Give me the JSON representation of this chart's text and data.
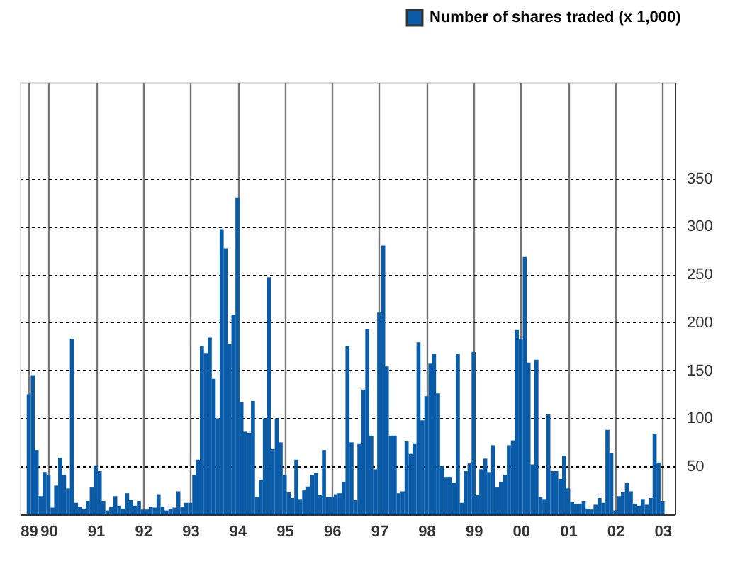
{
  "chart_data": {
    "type": "bar",
    "x": [
      "1989-08",
      "1989-09",
      "1989-10",
      "1989-11",
      "1989-12",
      "1990-01",
      "1990-02",
      "1990-03",
      "1990-04",
      "1990-05",
      "1990-06",
      "1990-07",
      "1990-08",
      "1990-09",
      "1990-10",
      "1990-11",
      "1990-12",
      "1991-01",
      "1991-02",
      "1991-03",
      "1991-04",
      "1991-05",
      "1991-06",
      "1991-07",
      "1991-08",
      "1991-09",
      "1991-10",
      "1991-11",
      "1991-12",
      "1992-01",
      "1992-02",
      "1992-03",
      "1992-04",
      "1992-05",
      "1992-06",
      "1992-07",
      "1992-08",
      "1992-09",
      "1992-10",
      "1992-11",
      "1992-12",
      "1993-01",
      "1993-02",
      "1993-03",
      "1993-04",
      "1993-05",
      "1993-06",
      "1993-07",
      "1993-08",
      "1993-09",
      "1993-10",
      "1993-11",
      "1993-12",
      "1994-01",
      "1994-02",
      "1994-03",
      "1994-04",
      "1994-05",
      "1994-06",
      "1994-07",
      "1994-08",
      "1994-09",
      "1994-10",
      "1994-11",
      "1994-12",
      "1995-01",
      "1995-02",
      "1995-03",
      "1995-04",
      "1995-05",
      "1995-06",
      "1995-07",
      "1995-08",
      "1995-09",
      "1995-10",
      "1995-11",
      "1995-12",
      "1996-01",
      "1996-02",
      "1996-03",
      "1996-04",
      "1996-05",
      "1996-06",
      "1996-07",
      "1996-08",
      "1996-09",
      "1996-10",
      "1996-11",
      "1996-12",
      "1997-01",
      "1997-02",
      "1997-03",
      "1997-04",
      "1997-05",
      "1997-06",
      "1997-07",
      "1997-08",
      "1997-09",
      "1997-10",
      "1997-11",
      "1997-12",
      "1998-01",
      "1998-02",
      "1998-03",
      "1998-04",
      "1998-05",
      "1998-06",
      "1998-07",
      "1998-08",
      "1998-09",
      "1998-10",
      "1998-11",
      "1998-12",
      "1999-01",
      "1999-02",
      "1999-03",
      "1999-04",
      "1999-05",
      "1999-06",
      "1999-07",
      "1999-08",
      "1999-09",
      "1999-10",
      "1999-11",
      "1999-12",
      "2000-01",
      "2000-02",
      "2000-03",
      "2000-04",
      "2000-05",
      "2000-06",
      "2000-07",
      "2000-08",
      "2000-09",
      "2000-10",
      "2000-11",
      "2000-12",
      "2001-01",
      "2001-02",
      "2001-03",
      "2001-04",
      "2001-05",
      "2001-06",
      "2001-07",
      "2001-08",
      "2001-09",
      "2001-10",
      "2001-11",
      "2001-12",
      "2002-01",
      "2002-02",
      "2002-03",
      "2002-04",
      "2002-05",
      "2002-06",
      "2002-07",
      "2002-08",
      "2002-09",
      "2002-10",
      "2002-11",
      "2002-12",
      "2003-01"
    ],
    "series": [
      {
        "name": "Number of shares traded (x 1,000)",
        "color": "#0a5ca8",
        "values": [
          125,
          145,
          67,
          19,
          44,
          41,
          7,
          30,
          59,
          41,
          27,
          183,
          12,
          8,
          6,
          14,
          28,
          51,
          45,
          14,
          4,
          8,
          19,
          9,
          6,
          22,
          15,
          9,
          14,
          5,
          5,
          8,
          7,
          21,
          8,
          4,
          6,
          7,
          24,
          8,
          12,
          12,
          41,
          57,
          175,
          168,
          184,
          141,
          100,
          297,
          277,
          177,
          208,
          330,
          117,
          86,
          85,
          118,
          18,
          36,
          100,
          247,
          68,
          100,
          75,
          41,
          23,
          17,
          57,
          16,
          25,
          29,
          41,
          43,
          20,
          67,
          18,
          18,
          21,
          22,
          34,
          175,
          75,
          15,
          74,
          130,
          193,
          82,
          47,
          210,
          280,
          154,
          82,
          82,
          22,
          24,
          76,
          63,
          74,
          179,
          98,
          123,
          157,
          167,
          126,
          50,
          39,
          39,
          33,
          167,
          12,
          45,
          53,
          169,
          20,
          47,
          58,
          44,
          72,
          28,
          34,
          41,
          72,
          77,
          192,
          183,
          268,
          158,
          52,
          161,
          18,
          16,
          104,
          45,
          45,
          37,
          61,
          27,
          13,
          11,
          11,
          14,
          6,
          5,
          10,
          17,
          12,
          88,
          64,
          4,
          19,
          23,
          33,
          24,
          11,
          9,
          16,
          10,
          17,
          84,
          54,
          14
        ]
      }
    ],
    "xlim": [
      "1989-07-18",
      "2003-02-10"
    ],
    "xticks": [
      {
        "value": "1989-08",
        "label": "89"
      },
      {
        "value": "1990",
        "label": "90"
      },
      {
        "value": "1991",
        "label": "91"
      },
      {
        "value": "1992",
        "label": "92"
      },
      {
        "value": "1993",
        "label": "93"
      },
      {
        "value": "1994",
        "label": "94"
      },
      {
        "value": "1995",
        "label": "95"
      },
      {
        "value": "1996",
        "label": "96"
      },
      {
        "value": "1997",
        "label": "97"
      },
      {
        "value": "1998",
        "label": "98"
      },
      {
        "value": "1999",
        "label": "99"
      },
      {
        "value": "2000",
        "label": "00"
      },
      {
        "value": "2001",
        "label": "01"
      },
      {
        "value": "2002",
        "label": "02"
      },
      {
        "value": "2003",
        "label": "03"
      }
    ],
    "ylim": [
      0,
      450
    ],
    "yticks": [
      50,
      100,
      150,
      200,
      250,
      300,
      350
    ],
    "grid": true,
    "legend": "top right"
  }
}
